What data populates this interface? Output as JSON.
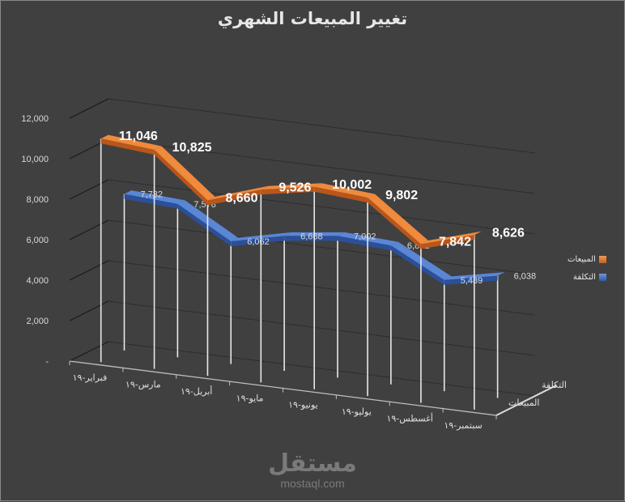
{
  "chart_data": {
    "type": "line",
    "variant": "3d-line",
    "title": "تغيير المبيعات الشهري",
    "xlabel": "",
    "ylabel": "",
    "ylim": [
      0,
      12000
    ],
    "yticks": [
      "-",
      "2,000",
      "4,000",
      "6,000",
      "8,000",
      "10,000",
      "12,000"
    ],
    "categories": [
      "فبراير-١٩",
      "مارس-١٩",
      "أبريل-١٩",
      "مايو-١٩",
      "يونيو-١٩",
      "يوليو-١٩",
      "أغسطس-١٩",
      "سبتمبر-١٩"
    ],
    "series": [
      {
        "name": "المبيعات",
        "color": "#e0772a",
        "values": [
          11046,
          10825,
          8660,
          9526,
          10002,
          9802,
          7842,
          8626
        ],
        "labels": [
          "11,046",
          "10,825",
          "8,660",
          "9,526",
          "10,002",
          "9,802",
          "7,842",
          "8,626"
        ]
      },
      {
        "name": "التكلفة",
        "color": "#4472c4",
        "values": [
          7732,
          7578,
          6062,
          6668,
          7002,
          6862,
          5489,
          6038
        ],
        "labels": [
          "7,732",
          "7,578",
          "6,062",
          "6,668",
          "7,002",
          "6,862",
          "5,489",
          "6,038"
        ]
      }
    ],
    "depth_axis_labels": [
      "التكلفة",
      "المبيعات"
    ],
    "grid": true,
    "legend_position": "right"
  },
  "legend": {
    "items": [
      {
        "label": "المبيعات",
        "color": "#e0772a"
      },
      {
        "label": "التكلفة",
        "color": "#4472c4"
      }
    ]
  },
  "watermark": {
    "arabic": "مستقل",
    "latin": "mostaql.com"
  }
}
